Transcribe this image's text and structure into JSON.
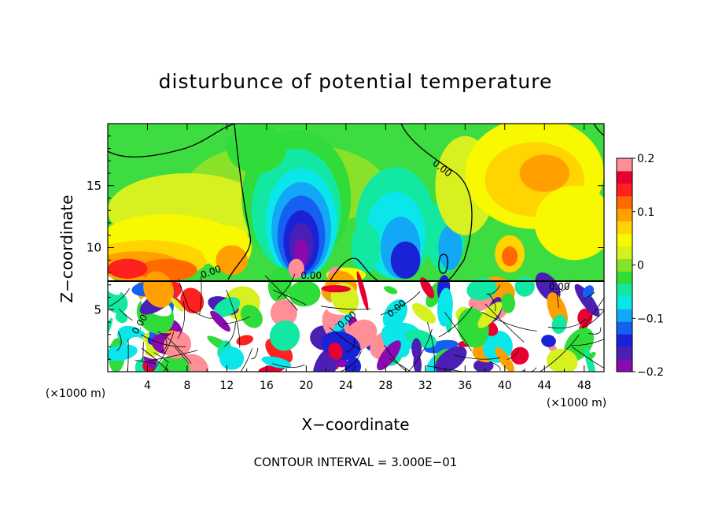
{
  "chart_data": {
    "type": "heatmap",
    "title": "disturbunce of potential temperature",
    "xlabel": "X−coordinate",
    "ylabel": "Z−coordinate",
    "x_unit": "(×1000 m)",
    "x_unit_right": "(×1000 m)",
    "xlim": [
      0,
      50
    ],
    "ylim": [
      0,
      20
    ],
    "x_ticks": [
      "4",
      "8",
      "12",
      "16",
      "20",
      "24",
      "28",
      "32",
      "36",
      "40",
      "44",
      "48"
    ],
    "y_ticks": [
      "5",
      "10",
      "15"
    ],
    "colorbar_ticks": [
      "0.2",
      "0.1",
      "0",
      "−0.1",
      "−0.2"
    ],
    "colorbar_range": [
      -0.2,
      0.2
    ],
    "colors": [
      "#8a0ab0",
      "#4b1fb4",
      "#1a22d6",
      "#1560f0",
      "#12a8f5",
      "#0ae6ea",
      "#13e8a3",
      "#2fdc3a",
      "#8ae12a",
      "#d7f020",
      "#f8f800",
      "#ffd400",
      "#ffa000",
      "#ff6a00",
      "#ff2020",
      "#e80030",
      "#ff8f96"
    ],
    "contour_label": "0.00",
    "footer": "CONTOUR INTERVAL = 3.000E−01",
    "grid": false,
    "legend": "right colorbar"
  }
}
